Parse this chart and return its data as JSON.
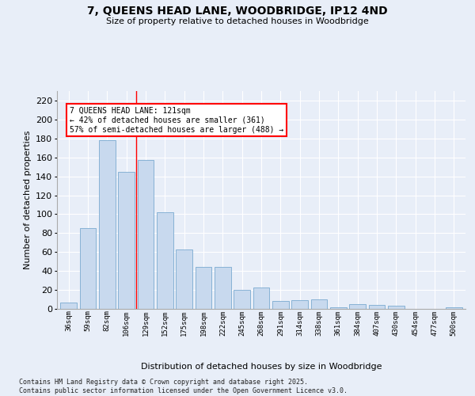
{
  "title": "7, QUEENS HEAD LANE, WOODBRIDGE, IP12 4ND",
  "subtitle": "Size of property relative to detached houses in Woodbridge",
  "xlabel": "Distribution of detached houses by size in Woodbridge",
  "ylabel": "Number of detached properties",
  "bar_color": "#c8d9ee",
  "bar_edge_color": "#7aaad0",
  "background_color": "#e8eef8",
  "grid_color": "#ffffff",
  "fig_bg": "#e8eef8",
  "categories": [
    "36sqm",
    "59sqm",
    "82sqm",
    "106sqm",
    "129sqm",
    "152sqm",
    "175sqm",
    "198sqm",
    "222sqm",
    "245sqm",
    "268sqm",
    "291sqm",
    "314sqm",
    "338sqm",
    "361sqm",
    "384sqm",
    "407sqm",
    "430sqm",
    "454sqm",
    "477sqm",
    "500sqm"
  ],
  "values": [
    7,
    85,
    178,
    145,
    157,
    102,
    63,
    44,
    44,
    20,
    23,
    8,
    9,
    10,
    2,
    5,
    4,
    3,
    0,
    0,
    2
  ],
  "ylim": [
    0,
    230
  ],
  "yticks": [
    0,
    20,
    40,
    60,
    80,
    100,
    120,
    140,
    160,
    180,
    200,
    220
  ],
  "annotation_line1": "7 QUEENS HEAD LANE: 121sqm",
  "annotation_line2": "← 42% of detached houses are smaller (361)",
  "annotation_line3": "57% of semi-detached houses are larger (488) →",
  "vline_x": 3.5,
  "footer": "Contains HM Land Registry data © Crown copyright and database right 2025.\nContains public sector information licensed under the Open Government Licence v3.0."
}
